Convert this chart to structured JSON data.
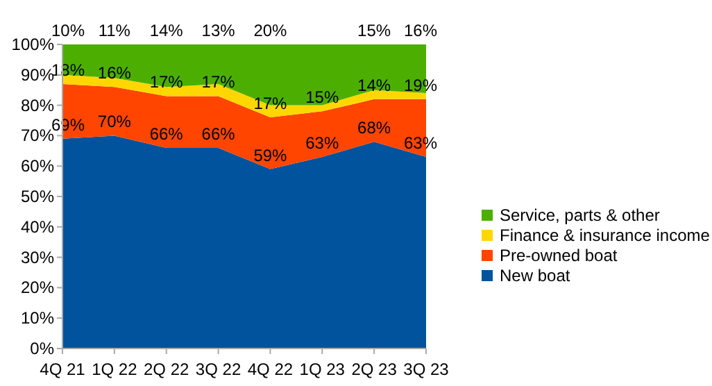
{
  "chart_data": {
    "type": "area",
    "stacked": true,
    "categories": [
      "4Q 21",
      "1Q 22",
      "2Q 22",
      "3Q 22",
      "4Q 22",
      "1Q 23",
      "2Q 23",
      "3Q 23"
    ],
    "series": [
      {
        "name": "New boat",
        "color": "#00539c",
        "values": [
          69,
          70,
          66,
          66,
          59,
          63,
          68,
          63
        ],
        "value_labels": [
          "69%",
          "70%",
          "66%",
          "66%",
          "59%",
          "63%",
          "68%",
          "63%"
        ]
      },
      {
        "name": "Pre-owned boat",
        "color": "#ff4500",
        "values": [
          18,
          16,
          17,
          17,
          17,
          15,
          14,
          19
        ],
        "value_labels": [
          "18%",
          "16%",
          "17%",
          "17%",
          "17%",
          "15%",
          "14%",
          "19%"
        ]
      },
      {
        "name": "Finance & insurance income",
        "color": "#ffd700",
        "values": [
          3,
          3,
          3,
          4,
          4,
          2,
          3,
          2
        ]
      },
      {
        "name": "Service, parts & other",
        "color": "#4caf00",
        "values": [
          10,
          11,
          14,
          13,
          20,
          20,
          15,
          16
        ],
        "value_labels": [
          "10%",
          "11%",
          "14%",
          "13%",
          "20%",
          null,
          "15%",
          "16%"
        ]
      }
    ],
    "ylim": [
      0,
      100
    ],
    "yticks": [
      {
        "value": 0,
        "label": "0%"
      },
      {
        "value": 10,
        "label": "10%"
      },
      {
        "value": 20,
        "label": "20%"
      },
      {
        "value": 30,
        "label": "30%"
      },
      {
        "value": 40,
        "label": "40%"
      },
      {
        "value": 50,
        "label": "50%"
      },
      {
        "value": 60,
        "label": "60%"
      },
      {
        "value": 70,
        "label": "70%"
      },
      {
        "value": 80,
        "label": "80%"
      },
      {
        "value": 90,
        "label": "90%"
      },
      {
        "value": 100,
        "label": "100%"
      }
    ],
    "grid": false,
    "legend": "right"
  }
}
